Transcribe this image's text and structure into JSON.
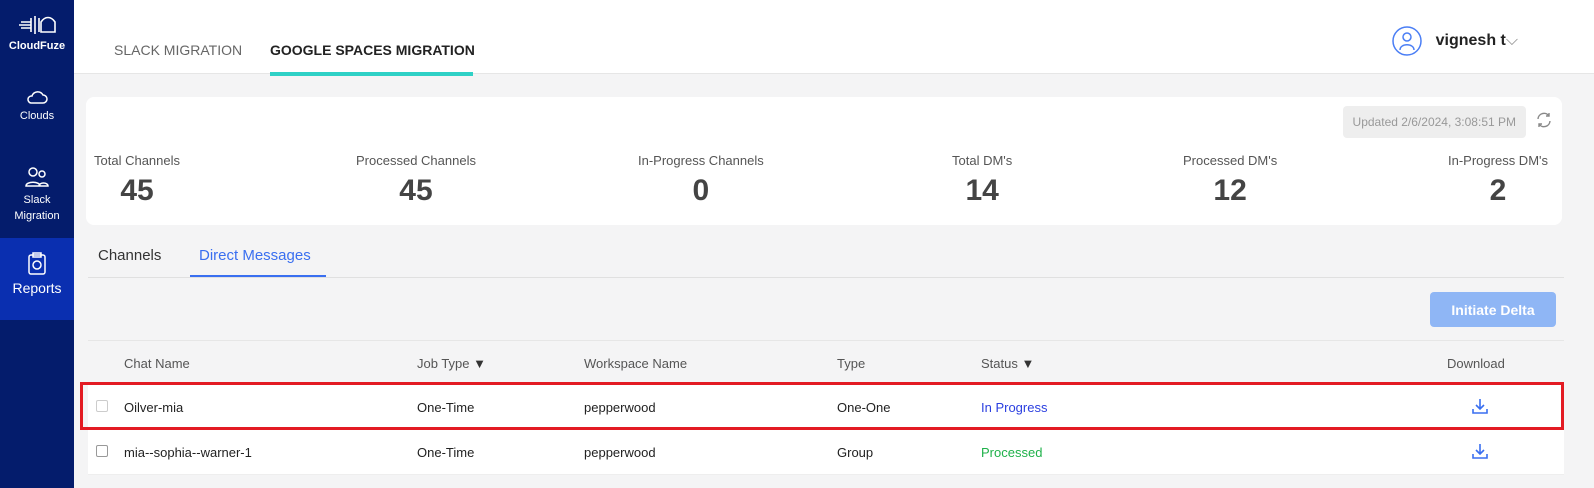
{
  "sidebar": {
    "brand": "CloudFuze",
    "items": [
      {
        "label": "Clouds",
        "icon": "cloud-icon"
      },
      {
        "label": "Slack Migration",
        "icon": "users-icon"
      },
      {
        "label": "Reports",
        "icon": "clipboard-icon",
        "active": true
      }
    ]
  },
  "header": {
    "tabs": [
      {
        "label": "SLACK MIGRATION"
      },
      {
        "label": "GOOGLE SPACES MIGRATION",
        "active": true
      }
    ],
    "user": "vignesh t"
  },
  "summary": {
    "updated": "Updated 2/6/2024, 3:08:51 PM",
    "stats": [
      {
        "label": "Total Channels",
        "value": "45"
      },
      {
        "label": "Processed Channels",
        "value": "45"
      },
      {
        "label": "In-Progress Channels",
        "value": "0"
      },
      {
        "label": "Total DM's",
        "value": "14"
      },
      {
        "label": "Processed DM's",
        "value": "12"
      },
      {
        "label": "In-Progress DM's",
        "value": "2"
      }
    ]
  },
  "subtabs": [
    {
      "label": "Channels"
    },
    {
      "label": "Direct Messages",
      "active": true
    }
  ],
  "initiate_delta": "Initiate Delta",
  "table": {
    "columns": [
      "Chat Name",
      "Job Type",
      "Workspace Name",
      "Type",
      "Status",
      "Download"
    ],
    "rows": [
      {
        "chat": "Oilver-mia",
        "job": "One-Time",
        "workspace": "pepperwood",
        "type": "One-One",
        "status": "In Progress",
        "status_color": "#2b3fe0"
      },
      {
        "chat": "mia--sophia--warner-1",
        "job": "One-Time",
        "workspace": "pepperwood",
        "type": "Group",
        "status": "Processed",
        "status_color": "#1fb14a"
      }
    ]
  },
  "colors": {
    "sidebar": "#041c6c",
    "active": "#0a2fb0",
    "accent": "#2fd1c6",
    "highlight": "#e31b23"
  }
}
